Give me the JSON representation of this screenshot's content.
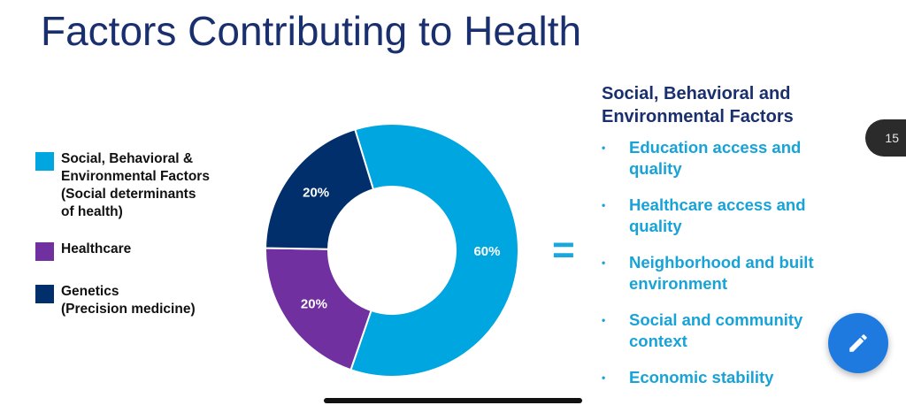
{
  "title": "Factors Contributing to Health",
  "chart_data": {
    "type": "pie",
    "style": "donut",
    "categories": [
      "Social, Behavioral & Environmental Factors (Social determinants of health)",
      "Healthcare",
      "Genetics (Precision medicine)"
    ],
    "values": [
      60,
      20,
      20
    ],
    "value_labels": [
      "60%",
      "20%",
      "20%"
    ],
    "colors": [
      "#00a6e0",
      "#7030a0",
      "#002f6c"
    ],
    "legend_placement": "left"
  },
  "legend": [
    {
      "label": "Social, Behavioral &\nEnvironmental Factors\n(Social determinants\nof health)",
      "color": "#00a6e0"
    },
    {
      "label": "Healthcare",
      "color": "#7030a0"
    },
    {
      "label": "Genetics\n (Precision medicine)",
      "color": "#002f6c"
    }
  ],
  "equals_sign": "=",
  "factors": {
    "heading": "Social, Behavioral and\nEnvironmental Factors",
    "bullet": "•",
    "items": [
      "Education access and\nquality",
      "Healthcare access and\nquality",
      "Neighborhood and built\nenvironment",
      "Social and community\ncontext",
      "Economic stability"
    ]
  },
  "page_number": "15",
  "icons": {
    "edit": "pencil-icon"
  }
}
